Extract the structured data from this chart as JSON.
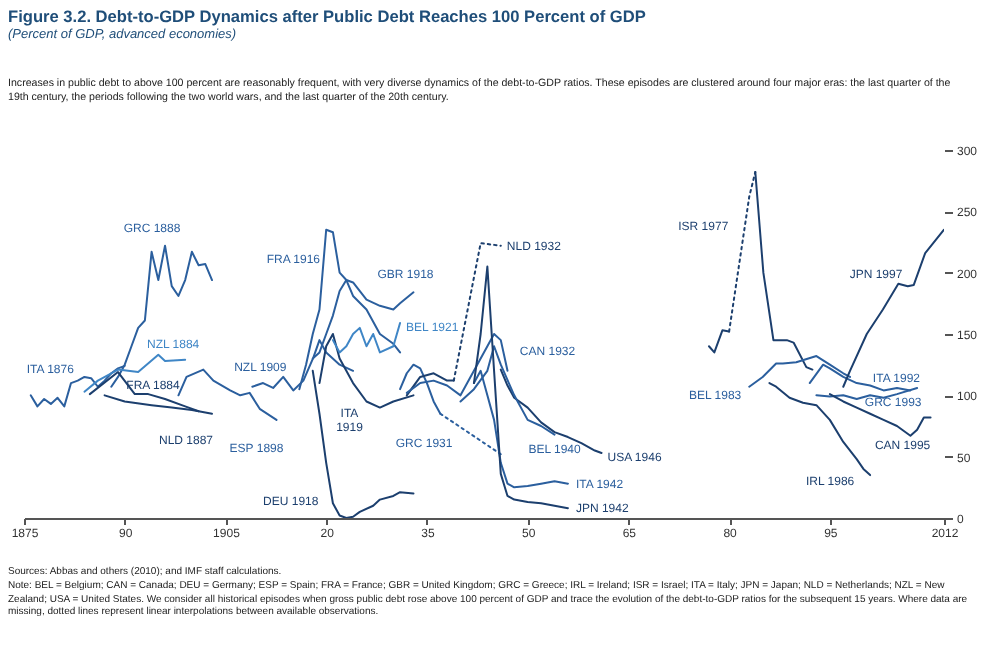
{
  "chart_data": {
    "type": "line",
    "title": "Figure 3.2. Debt-to-GDP Dynamics after Public Debt Reaches 100 Percent of GDP",
    "subtitle": "(Percent of GDP, advanced economies)",
    "annotations": [
      "Increases in public debt to above 100 percent are reasonably frequent, with very diverse dynamics of the debt-to-GDP ratios. These episodes are clustered around four major eras: the last quarter of the 19th century, the periods following the two world wars, and the last quarter of the 20th century.",
      "Sources: Abbas and others (2010); and IMF staff calculations.",
      "Note: BEL = Belgium; CAN = Canada; DEU = Germany; ESP = Spain; FRA = France; GBR = United Kingdom; GRC = Greece; IRL = Ireland; ISR = Israel; ITA = Italy; JPN = Japan; NLD = Netherlands; NZL = New Zealand; USA = United States. We consider all historical episodes when gross public debt rose above 100 percent of GDP and trace the evolution of the debt-to-GDP ratios for the subsequent 15 years. Where data are missing, dotted lines represent linear interpolations between available observations."
    ],
    "xlim": [
      1875,
      2012
    ],
    "xticks": [
      1875,
      {
        "value": 1890,
        "label": "90"
      },
      1905,
      {
        "value": 1920,
        "label": "20"
      },
      {
        "value": 1935,
        "label": "35"
      },
      {
        "value": 1950,
        "label": "50"
      },
      {
        "value": 1965,
        "label": "65"
      },
      {
        "value": 1980,
        "label": "80"
      },
      {
        "value": 1995,
        "label": "95"
      },
      2012
    ],
    "ylim": [
      0,
      300
    ],
    "yticks": [
      0,
      50,
      100,
      150,
      200,
      250,
      300
    ],
    "grid": false,
    "line_style": "solid",
    "marker": "none",
    "series": [
      {
        "name": "ITA 1876",
        "color": "#2b5f9e",
        "x": [
          1876,
          1877,
          1878,
          1879,
          1880,
          1881,
          1882,
          1883,
          1884,
          1885,
          1886,
          1887,
          1888,
          1889,
          1890
        ],
        "values": [
          100,
          91,
          97,
          93,
          98,
          91,
          110,
          112,
          115,
          114,
          107,
          112,
          118,
          122,
          124
        ]
      },
      {
        "name": "GRC 1888",
        "color": "#2b5f9e",
        "x": [
          1888,
          1889,
          1890,
          1891,
          1892,
          1893,
          1894,
          1895,
          1896,
          1897,
          1898,
          1899,
          1900,
          1901,
          1902,
          1903
        ],
        "values": [
          107,
          115,
          125,
          140,
          155,
          161,
          217,
          194,
          222,
          189,
          181,
          194,
          217,
          206,
          207,
          194
        ]
      },
      {
        "name": "NZL 1884",
        "color": "#3f86c6",
        "x": [
          1884,
          1886,
          1888,
          1889,
          1892,
          1895,
          1896,
          1899
        ],
        "values": [
          103,
          112,
          118,
          121,
          119,
          133,
          128,
          129
        ]
      },
      {
        "name": "FRA 1884",
        "color": "#1c3f6e",
        "x": [
          1884.8,
          1889,
          1891.5,
          1893.5,
          1896,
          1899,
          1901
        ],
        "values": [
          101,
          119,
          101,
          101,
          97,
          91,
          87
        ]
      },
      {
        "name": "NLD 1887",
        "color": "#1c3f6e",
        "x": [
          1887,
          1890,
          1894,
          1897,
          1900,
          1903
        ],
        "values": [
          100,
          95,
          92,
          90,
          88,
          85
        ]
      },
      {
        "name": "ESP 1898",
        "color": "#2b5f9e",
        "x": [
          1898,
          1899.2,
          1901.7,
          1903.2,
          1905.7,
          1907.2,
          1908.6,
          1910.1,
          1912.6
        ],
        "values": [
          100,
          115,
          121,
          112,
          104,
          100,
          102,
          89,
          80
        ]
      },
      {
        "name": "NZL 1909",
        "color": "#2b5f9e",
        "x": [
          1909,
          1910.6,
          1912.1,
          1913.6,
          1915.1,
          1916.6,
          1918.1,
          1919,
          1920,
          1922,
          1924
        ],
        "values": [
          107,
          110,
          106,
          115,
          104,
          112,
          131,
          145,
          135,
          125,
          120
        ]
      },
      {
        "name": "FRA 1916",
        "color": "#2b5f9e",
        "x": [
          1916,
          1917,
          1918,
          1919,
          1920,
          1921,
          1922,
          1923,
          1924,
          1926,
          1928,
          1930,
          1931
        ],
        "values": [
          105,
          125,
          150,
          170,
          235,
          233,
          200,
          194,
          181,
          170,
          150,
          142,
          135
        ]
      },
      {
        "name": "DEU 1918",
        "color": "#1c3f6e",
        "x": [
          1918,
          1919,
          1920,
          1921,
          1922,
          1923,
          1924,
          1925,
          1927,
          1928,
          1930,
          1931,
          1933
        ],
        "values": [
          120,
          85,
          45,
          12,
          2,
          0,
          1,
          5,
          10,
          15,
          18,
          21,
          20
        ]
      },
      {
        "name": "GBR 1918",
        "color": "#2b5f9e",
        "x": [
          1918,
          1919,
          1920,
          1921,
          1922,
          1923,
          1924,
          1926,
          1928,
          1930,
          1931,
          1933
        ],
        "values": [
          130,
          135,
          150,
          165,
          185,
          194,
          192,
          178,
          173,
          170,
          175,
          184
        ]
      },
      {
        "name": "ITA 1919",
        "color": "#1c3f6e",
        "x": [
          1919,
          1920,
          1921,
          1922,
          1923,
          1924,
          1926,
          1928,
          1930,
          1933
        ],
        "values": [
          110,
          140,
          150,
          130,
          120,
          110,
          95,
          90,
          95,
          100
        ]
      },
      {
        "name": "BEL 1921",
        "color": "#3f86c6",
        "x": [
          1921,
          1922,
          1923,
          1924,
          1925,
          1926,
          1927,
          1928,
          1930,
          1931
        ],
        "values": [
          145,
          135,
          140,
          150,
          155,
          140,
          150,
          135,
          140,
          159
        ]
      },
      {
        "name": "GRC 1931",
        "color": "#2b5f9e",
        "x": [
          1931,
          1932,
          1933,
          1934,
          1935,
          1936,
          1937
        ],
        "values": [
          105,
          118,
          125,
          122,
          110,
          95,
          85
        ]
      },
      {
        "color": "#2b5f9e",
        "line_style": "dotted",
        "x": [
          1937,
          1946
        ],
        "values": [
          85,
          52
        ]
      },
      {
        "color": "#1c3f6e",
        "x": [
          1932,
          1934,
          1936,
          1938,
          1939
        ],
        "values": [
          100,
          115,
          118,
          112,
          112
        ]
      },
      {
        "name": "NLD 1932",
        "color": "#1c3f6e",
        "line_style": "dotted",
        "x": [
          1939,
          1943,
          1946
        ],
        "values": [
          112,
          224,
          222
        ]
      },
      {
        "name": "CAN 1932",
        "color": "#2b5f9e",
        "x": [
          1932,
          1934,
          1936,
          1938,
          1940,
          1942,
          1944,
          1945,
          1946,
          1947
        ],
        "values": [
          102,
          110,
          112,
          108,
          100,
          120,
          140,
          150,
          145,
          120
        ]
      },
      {
        "name": "USA 1946",
        "color": "#1c3f6e",
        "x": [
          1946,
          1947,
          1948,
          1950,
          1952,
          1954,
          1956,
          1958,
          1960,
          1961
        ],
        "values": [
          121,
          108,
          98,
          90,
          78,
          70,
          66,
          61,
          55,
          53
        ]
      },
      {
        "name": "BEL 1940",
        "color": "#2b5f9e",
        "x": [
          1940,
          1942,
          1944,
          1945,
          1946,
          1948,
          1950,
          1952,
          1954
        ],
        "values": [
          95,
          105,
          120,
          140,
          125,
          100,
          80,
          75,
          68
        ]
      },
      {
        "name": "ITA 1942",
        "color": "#2b5f9e",
        "x": [
          1942,
          1943,
          1944,
          1945,
          1946,
          1947,
          1948,
          1950,
          1952,
          1954,
          1956
        ],
        "values": [
          110,
          120,
          100,
          80,
          45,
          28,
          25,
          26,
          28,
          30,
          28
        ]
      },
      {
        "name": "JPN 1942",
        "color": "#1c3f6e",
        "x": [
          1942,
          1943,
          1944,
          1945,
          1946,
          1947,
          1948,
          1950,
          1952,
          1956
        ],
        "values": [
          110,
          150,
          205,
          120,
          36,
          18,
          15,
          13,
          12,
          8
        ]
      },
      {
        "color": "#1c3f6e",
        "x": [
          1977,
          1977.8,
          1979,
          1980
        ],
        "values": [
          140,
          135,
          153,
          152
        ]
      },
      {
        "color": "#1c3f6e",
        "line_style": "dotted",
        "x": [
          1980,
          1983,
          1983.9
        ],
        "values": [
          152,
          262,
          282
        ]
      },
      {
        "name": "ISR 1977",
        "color": "#1c3f6e",
        "x": [
          1983.9,
          1985.1,
          1986.6,
          1988.6,
          1989.6,
          1991.5,
          1992.4
        ],
        "values": [
          282,
          200,
          145,
          145,
          143,
          123,
          121
        ]
      },
      {
        "name": "BEL 1983",
        "color": "#2b5f9e",
        "x": [
          1983,
          1985,
          1987,
          1988,
          1990,
          1993,
          1995,
          1997,
          1998
        ],
        "values": [
          107,
          115,
          126,
          126,
          127,
          132,
          125,
          118,
          115
        ]
      },
      {
        "name": "ITA 1992",
        "color": "#2b5f9e",
        "x": [
          1992,
          1994,
          1995,
          1997,
          1999,
          2001,
          2003,
          2005,
          2007
        ],
        "values": [
          110,
          125,
          122,
          115,
          110,
          108,
          104,
          106,
          104
        ]
      },
      {
        "name": "GRC 1993",
        "color": "#2b5f9e",
        "x": [
          1993,
          1995,
          1997,
          1999,
          2001,
          2003,
          2005,
          2008
        ],
        "values": [
          100,
          99,
          100,
          97,
          100,
          98,
          101,
          106
        ]
      },
      {
        "name": "CAN 1995",
        "color": "#1c3f6e",
        "x": [
          1995,
          1997,
          1999,
          2001,
          2003,
          2005,
          2007,
          2008,
          2009,
          2010
        ],
        "values": [
          101,
          95,
          90,
          85,
          80,
          75,
          67,
          72,
          82,
          82
        ]
      },
      {
        "name": "IRL 1986",
        "color": "#1c3f6e",
        "x": [
          1986,
          1987,
          1989,
          1991,
          1993,
          1995,
          1997,
          1999,
          2000,
          2001
        ],
        "values": [
          110,
          107,
          98,
          94,
          92,
          80,
          62,
          48,
          40,
          35
        ]
      },
      {
        "name": "JPN 1997",
        "color": "#1c3f6e",
        "x": [
          1997,
          1998,
          2000.5,
          2002.9,
          2005.2,
          2006.6,
          2007.5,
          2009.2,
          2012
        ],
        "values": [
          107,
          120,
          150,
          170,
          191,
          189,
          190,
          216,
          235
        ]
      }
    ]
  }
}
